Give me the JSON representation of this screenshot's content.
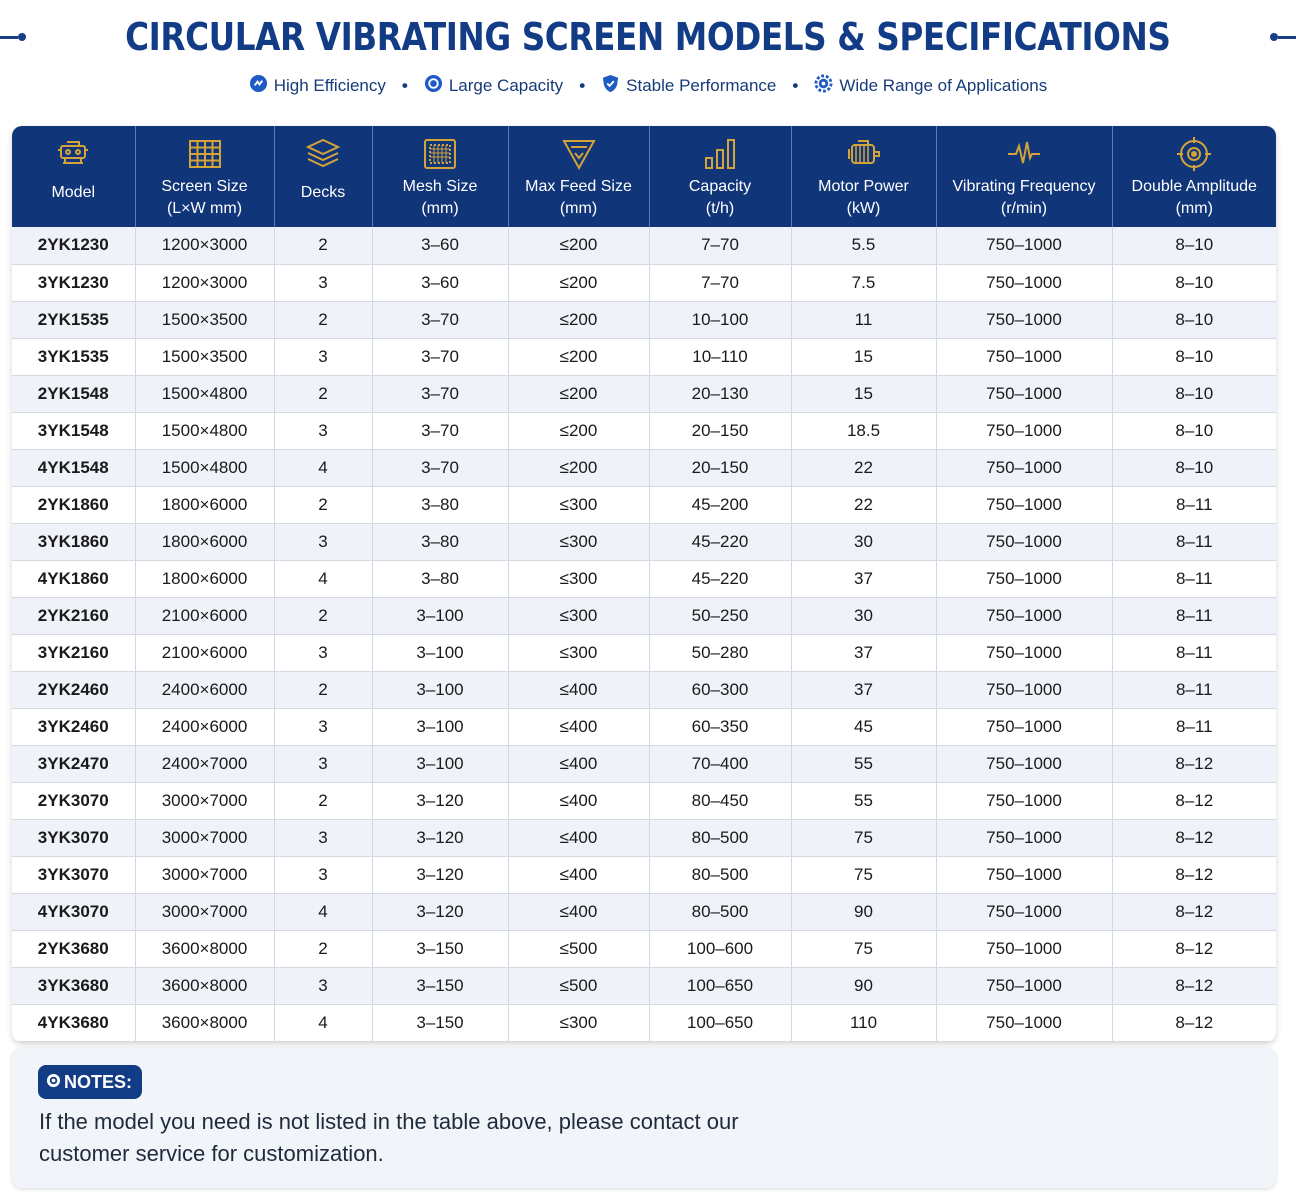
{
  "title": "CIRCULAR VIBRATING SCREEN MODELS & SPECIFICATIONS",
  "features": [
    {
      "icon": "efficiency-icon",
      "label": "High Efficiency"
    },
    {
      "icon": "capacity-icon",
      "label": "Large Capacity"
    },
    {
      "icon": "shield-icon",
      "label": "Stable Performance"
    },
    {
      "icon": "gear-icon",
      "label": "Wide Range of Applications"
    }
  ],
  "separator": "•",
  "headers": [
    {
      "icon": "machine-icon",
      "l1": "Model",
      "l2": ""
    },
    {
      "icon": "grid-icon",
      "l1": "Screen Size",
      "l2": "(L×W mm)"
    },
    {
      "icon": "layers-icon",
      "l1": "Decks",
      "l2": ""
    },
    {
      "icon": "mesh-icon",
      "l1": "Mesh Size",
      "l2": "(mm)"
    },
    {
      "icon": "funnel-icon",
      "l1": "Max Feed Size",
      "l2": "(mm)"
    },
    {
      "icon": "bar-chart-icon",
      "l1": "Capacity",
      "l2": "(t/h)"
    },
    {
      "icon": "motor-icon",
      "l1": "Motor Power",
      "l2": "(kW)"
    },
    {
      "icon": "wave-icon",
      "l1": "Vibrating Frequency",
      "l2": "(r/min)"
    },
    {
      "icon": "target-icon",
      "l1": "Double Amplitude",
      "l2": "(mm)"
    }
  ],
  "rows": [
    [
      "2YK1230",
      "1200×3000",
      "2",
      "3–60",
      "≤200",
      "7–70",
      "5.5",
      "750–1000",
      "8–10"
    ],
    [
      "3YK1230",
      "1200×3000",
      "3",
      "3–60",
      "≤200",
      "7–70",
      "7.5",
      "750–1000",
      "8–10"
    ],
    [
      "2YK1535",
      "1500×3500",
      "2",
      "3–70",
      "≤200",
      "10–100",
      "11",
      "750–1000",
      "8–10"
    ],
    [
      "3YK1535",
      "1500×3500",
      "3",
      "3–70",
      "≤200",
      "10–110",
      "15",
      "750–1000",
      "8–10"
    ],
    [
      "2YK1548",
      "1500×4800",
      "2",
      "3–70",
      "≤200",
      "20–130",
      "15",
      "750–1000",
      "8–10"
    ],
    [
      "3YK1548",
      "1500×4800",
      "3",
      "3–70",
      "≤200",
      "20–150",
      "18.5",
      "750–1000",
      "8–10"
    ],
    [
      "4YK1548",
      "1500×4800",
      "4",
      "3–70",
      "≤200",
      "20–150",
      "22",
      "750–1000",
      "8–10"
    ],
    [
      "2YK1860",
      "1800×6000",
      "2",
      "3–80",
      "≤300",
      "45–200",
      "22",
      "750–1000",
      "8–11"
    ],
    [
      "3YK1860",
      "1800×6000",
      "3",
      "3–80",
      "≤300",
      "45–220",
      "30",
      "750–1000",
      "8–11"
    ],
    [
      "4YK1860",
      "1800×6000",
      "4",
      "3–80",
      "≤300",
      "45–220",
      "37",
      "750–1000",
      "8–11"
    ],
    [
      "2YK2160",
      "2100×6000",
      "2",
      "3–100",
      "≤300",
      "50–250",
      "30",
      "750–1000",
      "8–11"
    ],
    [
      "3YK2160",
      "2100×6000",
      "3",
      "3–100",
      "≤300",
      "50–280",
      "37",
      "750–1000",
      "8–11"
    ],
    [
      "2YK2460",
      "2400×6000",
      "2",
      "3–100",
      "≤400",
      "60–300",
      "37",
      "750–1000",
      "8–11"
    ],
    [
      "3YK2460",
      "2400×6000",
      "3",
      "3–100",
      "≤400",
      "60–350",
      "45",
      "750–1000",
      "8–11"
    ],
    [
      "3YK2470",
      "2400×7000",
      "3",
      "3–100",
      "≤400",
      "70–400",
      "55",
      "750–1000",
      "8–12"
    ],
    [
      "2YK3070",
      "3000×7000",
      "2",
      "3–120",
      "≤400",
      "80–450",
      "55",
      "750–1000",
      "8–12"
    ],
    [
      "3YK3070",
      "3000×7000",
      "3",
      "3–120",
      "≤400",
      "80–500",
      "75",
      "750–1000",
      "8–12"
    ],
    [
      "3YK3070",
      "3000×7000",
      "3",
      "3–120",
      "≤400",
      "80–500",
      "75",
      "750–1000",
      "8–12"
    ],
    [
      "4YK3070",
      "3000×7000",
      "4",
      "3–120",
      "≤400",
      "80–500",
      "90",
      "750–1000",
      "8–12"
    ],
    [
      "2YK3680",
      "3600×8000",
      "2",
      "3–150",
      "≤500",
      "100–600",
      "75",
      "750–1000",
      "8–12"
    ],
    [
      "3YK3680",
      "3600×8000",
      "3",
      "3–150",
      "≤500",
      "100–650",
      "90",
      "750–1000",
      "8–12"
    ],
    [
      "4YK3680",
      "3600×8000",
      "4",
      "3–150",
      "≤300",
      "100–650",
      "110",
      "750–1000",
      "8–12"
    ]
  ],
  "notes": {
    "badge": "NOTES:",
    "text": "If the model you need is not listed in the table above, please contact our customer service for customization."
  },
  "colors": {
    "brand_navy": "#113579",
    "title_blue": "#123c86",
    "row_alt": "#eff2f8"
  }
}
